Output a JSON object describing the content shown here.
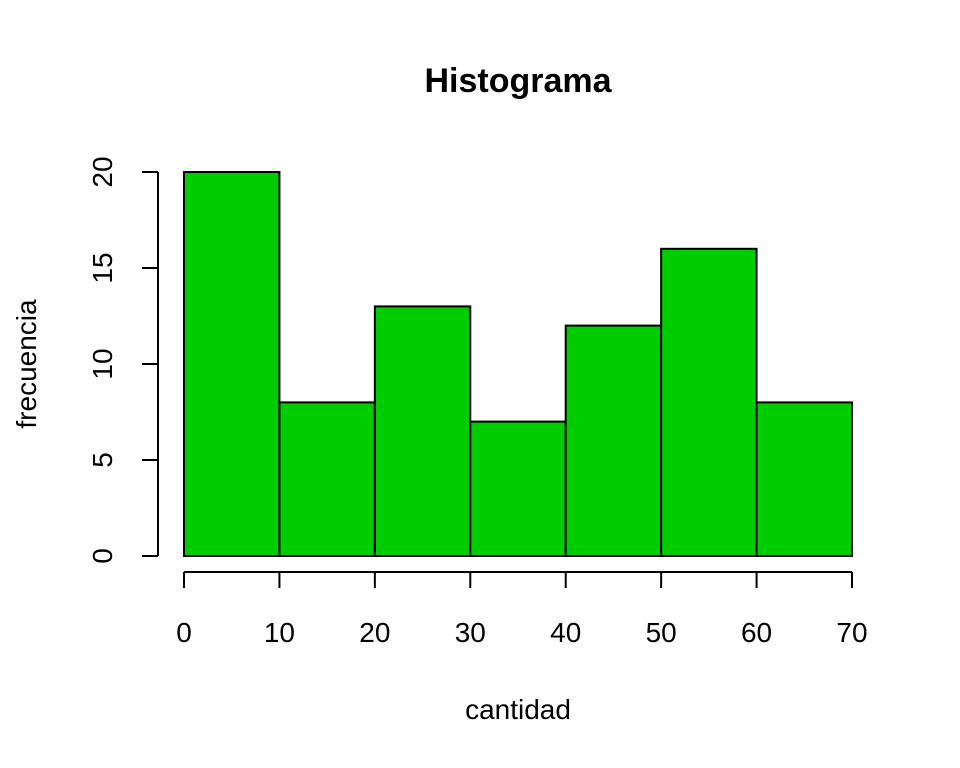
{
  "chart_data": {
    "type": "bar",
    "title": "Histograma",
    "xlabel": "cantidad",
    "ylabel": "frecuencia",
    "bins": [
      [
        0,
        10
      ],
      [
        10,
        20
      ],
      [
        20,
        30
      ],
      [
        30,
        40
      ],
      [
        40,
        50
      ],
      [
        50,
        60
      ],
      [
        60,
        70
      ]
    ],
    "values": [
      20,
      8,
      13,
      7,
      12,
      16,
      8
    ],
    "xlim": [
      0,
      70
    ],
    "ylim": [
      0,
      20
    ],
    "x_ticks": [
      0,
      10,
      20,
      30,
      40,
      50,
      60,
      70
    ],
    "y_ticks": [
      0,
      5,
      10,
      15,
      20
    ],
    "bar_color": "#00CD00",
    "grid": false,
    "legend": "none"
  }
}
